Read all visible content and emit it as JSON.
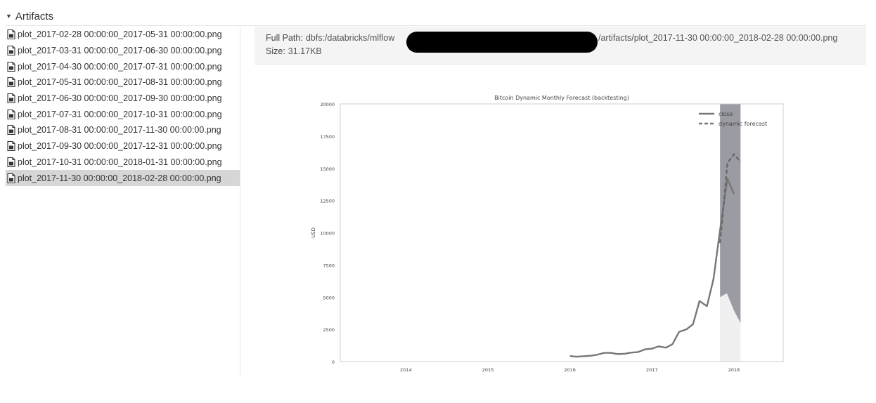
{
  "section": {
    "title": "Artifacts"
  },
  "files": [
    {
      "name": "plot_2017-02-28 00:00:00_2017-05-31 00:00:00.png",
      "selected": false
    },
    {
      "name": "plot_2017-03-31 00:00:00_2017-06-30 00:00:00.png",
      "selected": false
    },
    {
      "name": "plot_2017-04-30 00:00:00_2017-07-31 00:00:00.png",
      "selected": false
    },
    {
      "name": "plot_2017-05-31 00:00:00_2017-08-31 00:00:00.png",
      "selected": false
    },
    {
      "name": "plot_2017-06-30 00:00:00_2017-09-30 00:00:00.png",
      "selected": false
    },
    {
      "name": "plot_2017-07-31 00:00:00_2017-10-31 00:00:00.png",
      "selected": false
    },
    {
      "name": "plot_2017-08-31 00:00:00_2017-11-30 00:00:00.png",
      "selected": false
    },
    {
      "name": "plot_2017-09-30 00:00:00_2017-12-31 00:00:00.png",
      "selected": false
    },
    {
      "name": "plot_2017-10-31 00:00:00_2018-01-31 00:00:00.png",
      "selected": false
    },
    {
      "name": "plot_2017-11-30 00:00:00_2018-02-28 00:00:00.png",
      "selected": true
    }
  ],
  "details": {
    "path_label": "Full Path:",
    "path_prefix": "dbfs:/databricks/mlflow",
    "path_suffix": "/artifacts/plot_2017-11-30 00:00:00_2018-02-28 00:00:00.png",
    "size_label": "Size:",
    "size_value": "31.17KB"
  },
  "colors": {
    "selected_row": "#d6d6d6",
    "header_bg": "#f4f4f4",
    "line": "#777777",
    "band": "#9c9ca4"
  },
  "chart_data": {
    "type": "line",
    "title": "Bitcoin Dynamic Monthly Forecast (backtesting)",
    "xlabel": "",
    "ylabel": "USD",
    "x_ticks": [
      "2014",
      "2015",
      "2016",
      "2017",
      "2018"
    ],
    "y_ticks": [
      "0",
      "2500",
      "5000",
      "7500",
      "10000",
      "12500",
      "15000",
      "17500",
      "20000"
    ],
    "xlim": [
      2013.2,
      2018.6
    ],
    "ylim": [
      0,
      20000
    ],
    "legend_position": "top-right",
    "grid": false,
    "series": [
      {
        "name": "close",
        "style": "solid",
        "x": [
          2016.0,
          2016.08,
          2016.17,
          2016.25,
          2016.33,
          2016.42,
          2016.5,
          2016.58,
          2016.67,
          2016.75,
          2016.83,
          2016.92,
          2017.0,
          2017.08,
          2017.17,
          2017.25,
          2017.33,
          2017.42,
          2017.5,
          2017.58,
          2017.67,
          2017.75,
          2017.83,
          2017.92,
          2018.0
        ],
        "y": [
          430,
          380,
          420,
          450,
          530,
          680,
          680,
          580,
          610,
          700,
          740,
          960,
          1000,
          1180,
          1080,
          1350,
          2300,
          2500,
          2900,
          4700,
          4300,
          6400,
          10200,
          14200,
          13000
        ]
      },
      {
        "name": "dynamic forecast",
        "style": "dashed",
        "x": [
          2017.83,
          2017.92,
          2018.0,
          2018.08
        ],
        "y": [
          9200,
          15400,
          16100,
          15500
        ]
      }
    ],
    "forecast_band": {
      "x_start": 2017.83,
      "x_end": 2018.08,
      "lower": [
        5000,
        5300,
        4000,
        3000
      ],
      "upper": [
        20000,
        20000,
        20000,
        20000
      ]
    }
  }
}
